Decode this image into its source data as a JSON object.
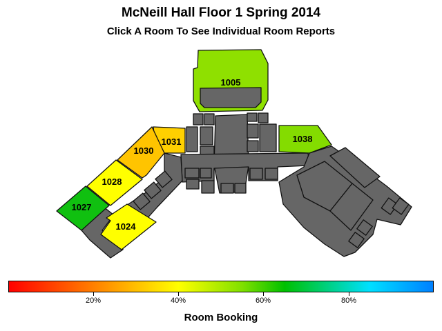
{
  "title": "McNeill Hall Floor 1 Spring 2014",
  "subtitle": "Click A Room To See Individual Room Reports",
  "rooms": [
    {
      "id": "1005",
      "label": "1005",
      "booking": 0.57,
      "color": "#8fe000"
    },
    {
      "id": "1038",
      "label": "1038",
      "booking": 0.58,
      "color": "#84dc00"
    },
    {
      "id": "1031",
      "label": "1031",
      "booking": 0.36,
      "color": "#ffd000"
    },
    {
      "id": "1030",
      "label": "1030",
      "booking": 0.34,
      "color": "#ffc400"
    },
    {
      "id": "1028",
      "label": "1028",
      "booking": 0.43,
      "color": "#ffff00"
    },
    {
      "id": "1027",
      "label": "1027",
      "booking": 0.68,
      "color": "#10c010"
    },
    {
      "id": "1024",
      "label": "1024",
      "booking": 0.44,
      "color": "#ffff00"
    }
  ],
  "legend": {
    "title": "Room Booking",
    "ticks": [
      "20%",
      "40%",
      "60%",
      "80%"
    ],
    "colors": [
      "#ff0000",
      "#ff8000",
      "#ffff00",
      "#80e000",
      "#00c000",
      "#00e0ff",
      "#0080ff"
    ]
  }
}
